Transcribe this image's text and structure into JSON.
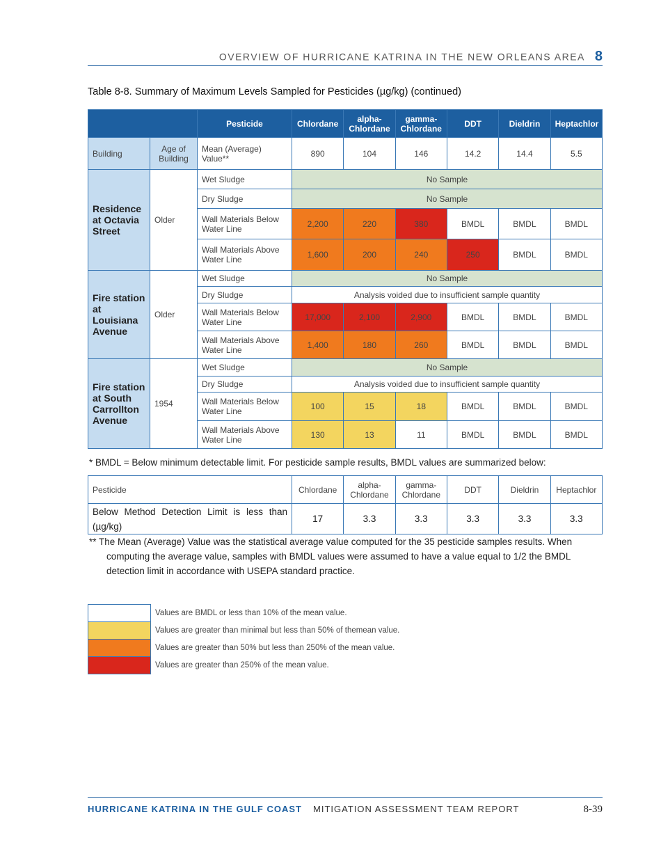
{
  "header": {
    "title": "OVERVIEW OF HURRICANE KATRINA IN THE NEW ORLEANS AREA",
    "chapter": "8"
  },
  "table_title": "Table 8-8. Summary of Maximum Levels Sampled for Pesticides (µg/kg) (continued)",
  "main_table": {
    "header_color": "#1d5fa0",
    "building_color": "#c5dcf0",
    "columns": [
      "Pesticide",
      "Chlordane",
      "alpha-Chlordane",
      "gamma-Chlordane",
      "DDT",
      "Dieldrin",
      "Heptachlor"
    ],
    "mean_row": {
      "building": "Building",
      "age": "Age of Building",
      "label": "Mean (Average) Value**",
      "values": [
        "890",
        "104",
        "146",
        "14.2",
        "14.4",
        "5.5"
      ]
    },
    "groups": [
      {
        "building": "Residence at Octavia Street",
        "age": "Older",
        "rows": [
          {
            "sample": "Wet Sludge",
            "note": "No Sample",
            "color": "#d6e3cf"
          },
          {
            "sample": "Dry Sludge",
            "note": "No Sample",
            "color": "#d6e3cf"
          },
          {
            "sample": "Wall Materials Below Water Line",
            "cells": [
              "2,200",
              "220",
              "380",
              "BMDL",
              "BMDL",
              "BMDL"
            ],
            "colors": [
              "#f07a1e",
              "#f07a1e",
              "#d9261c",
              "#ffffff",
              "#ffffff",
              "#ffffff"
            ]
          },
          {
            "sample": "Wall Materials Above Water Line",
            "cells": [
              "1,600",
              "200",
              "240",
              "250",
              "BMDL",
              "BMDL"
            ],
            "colors": [
              "#f07a1e",
              "#f07a1e",
              "#f07a1e",
              "#d9261c",
              "#ffffff",
              "#ffffff"
            ]
          }
        ]
      },
      {
        "building": "Fire station at Louisiana Avenue",
        "age": "Older",
        "rows": [
          {
            "sample": "Wet Sludge",
            "note": "No Sample",
            "color": "#d6e3cf"
          },
          {
            "sample": "Dry Sludge",
            "note": "Analysis voided due to insufficient sample quantity",
            "color": "#ffffff"
          },
          {
            "sample": "Wall Materials Below Water Line",
            "cells": [
              "17,000",
              "2,100",
              "2,900",
              "BMDL",
              "BMDL",
              "BMDL"
            ],
            "colors": [
              "#d9261c",
              "#d9261c",
              "#d9261c",
              "#ffffff",
              "#ffffff",
              "#ffffff"
            ]
          },
          {
            "sample": "Wall Materials Above Water Line",
            "cells": [
              "1,400",
              "180",
              "260",
              "BMDL",
              "BMDL",
              "BMDL"
            ],
            "colors": [
              "#f07a1e",
              "#f07a1e",
              "#f07a1e",
              "#ffffff",
              "#ffffff",
              "#ffffff"
            ]
          }
        ]
      },
      {
        "building": "Fire station at South Carrollton Avenue",
        "age": "1954",
        "rows": [
          {
            "sample": "Wet Sludge",
            "note": "No Sample",
            "color": "#d6e3cf"
          },
          {
            "sample": "Dry Sludge",
            "note": "Analysis voided due to insufficient sample quantity",
            "color": "#ffffff"
          },
          {
            "sample": "Wall Materials Below Water Line",
            "cells": [
              "100",
              "15",
              "18",
              "BMDL",
              "BMDL",
              "BMDL"
            ],
            "colors": [
              "#f3d55f",
              "#f3d55f",
              "#f3d55f",
              "#ffffff",
              "#ffffff",
              "#ffffff"
            ]
          },
          {
            "sample": "Wall Materials Above Water Line",
            "cells": [
              "130",
              "13",
              "11",
              "BMDL",
              "BMDL",
              "BMDL"
            ],
            "colors": [
              "#f3d55f",
              "#f3d55f",
              "#ffffff",
              "#ffffff",
              "#ffffff",
              "#ffffff"
            ]
          }
        ]
      }
    ]
  },
  "bmdl_note": "* BMDL = Below minimum detectable limit. For pesticide sample results, BMDL values are summarized below:",
  "bmdl_table": {
    "columns": [
      "Pesticide",
      "Chlordane",
      "alpha-Chlordane",
      "gamma-Chlordane",
      "DDT",
      "Dieldrin",
      "Heptachlor"
    ],
    "row": [
      "Below Method Detection Limit is less than (µg/kg)",
      "17",
      "3.3",
      "3.3",
      "3.3",
      "3.3",
      "3.3"
    ]
  },
  "mean_note": "** The Mean (Average) Value was the statistical average value computed for the 35 pesticide samples results. When computing the average value, samples with BMDL values were assumed to have a value equal to 1/2 the BMDL detection limit in accordance with USEPA standard practice.",
  "legend": [
    {
      "color": "#ffffff",
      "text": "Values are BMDL or less than 10% of the mean value."
    },
    {
      "color": "#f3d55f",
      "text": "Values are greater than minimal but less than 50% of themean value."
    },
    {
      "color": "#f07a1e",
      "text": "Values are greater than 50% but less than 250% of the mean value."
    },
    {
      "color": "#d9261c",
      "text": "Values are greater than 250% of the mean value."
    }
  ],
  "footer": {
    "left": "HURRICANE KATRINA IN THE GULF COAST",
    "center": "MITIGATION ASSESSMENT TEAM REPORT",
    "page": "8-39"
  }
}
